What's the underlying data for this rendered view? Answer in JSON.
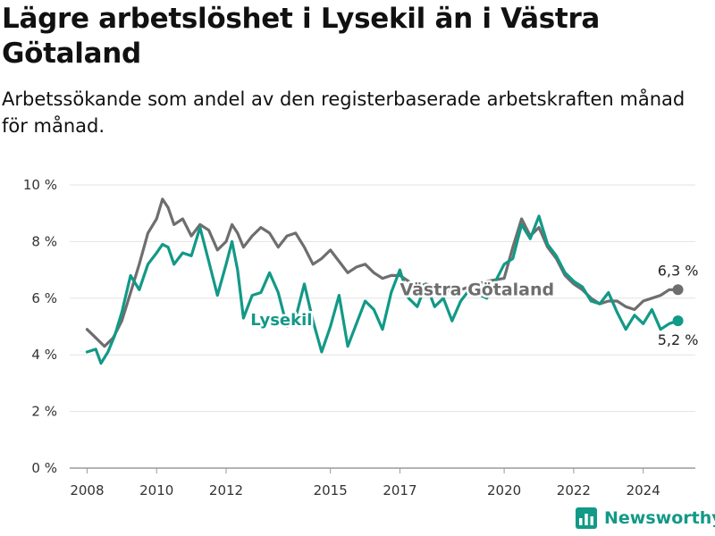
{
  "title": "Lägre arbetslöshet i Lysekil än i Västra Götaland",
  "subtitle": "Arbetssökande som andel av den registerbaserade arbetskraften månad för månad.",
  "brand": {
    "name": "Newsworthy",
    "icon": "bar-chart-icon",
    "color": "#129987"
  },
  "chart_data": {
    "type": "line",
    "title": "Lägre arbetslöshet i Lysekil än i Västra Götaland",
    "subtitle": "Arbetssökande som andel av den registerbaserade arbetskraften månad för månad.",
    "xlabel": "",
    "ylabel": "",
    "xlim": [
      2007.5,
      2025.5
    ],
    "ylim": [
      0,
      10
    ],
    "x_ticks": [
      2008,
      2010,
      2012,
      2015,
      2017,
      2020,
      2022,
      2024
    ],
    "y_ticks": [
      {
        "value": 0,
        "label": "0 %"
      },
      {
        "value": 2,
        "label": "2 %"
      },
      {
        "value": 4,
        "label": "4 %"
      },
      {
        "value": 6,
        "label": "6 %"
      },
      {
        "value": 8,
        "label": "8 %"
      },
      {
        "value": 10,
        "label": "10 %"
      }
    ],
    "grid": "horizontal",
    "series": [
      {
        "name": "Västra Götaland",
        "color": "#6e6e6e",
        "end_label": "6,3 %",
        "points": [
          [
            2008.0,
            4.9
          ],
          [
            2008.25,
            4.6
          ],
          [
            2008.5,
            4.3
          ],
          [
            2008.75,
            4.6
          ],
          [
            2009.0,
            5.2
          ],
          [
            2009.25,
            6.2
          ],
          [
            2009.5,
            7.2
          ],
          [
            2009.75,
            8.3
          ],
          [
            2010.0,
            8.8
          ],
          [
            2010.17,
            9.5
          ],
          [
            2010.33,
            9.2
          ],
          [
            2010.5,
            8.6
          ],
          [
            2010.75,
            8.8
          ],
          [
            2011.0,
            8.2
          ],
          [
            2011.25,
            8.6
          ],
          [
            2011.5,
            8.4
          ],
          [
            2011.75,
            7.7
          ],
          [
            2012.0,
            8.0
          ],
          [
            2012.17,
            8.6
          ],
          [
            2012.33,
            8.3
          ],
          [
            2012.5,
            7.8
          ],
          [
            2012.75,
            8.2
          ],
          [
            2013.0,
            8.5
          ],
          [
            2013.25,
            8.3
          ],
          [
            2013.5,
            7.8
          ],
          [
            2013.75,
            8.2
          ],
          [
            2014.0,
            8.3
          ],
          [
            2014.25,
            7.8
          ],
          [
            2014.5,
            7.2
          ],
          [
            2014.75,
            7.4
          ],
          [
            2015.0,
            7.7
          ],
          [
            2015.25,
            7.3
          ],
          [
            2015.5,
            6.9
          ],
          [
            2015.75,
            7.1
          ],
          [
            2016.0,
            7.2
          ],
          [
            2016.25,
            6.9
          ],
          [
            2016.5,
            6.7
          ],
          [
            2016.75,
            6.8
          ],
          [
            2017.0,
            6.8
          ],
          [
            2017.25,
            6.6
          ],
          [
            2017.5,
            6.4
          ],
          [
            2017.75,
            6.5
          ],
          [
            2018.0,
            6.4
          ],
          [
            2018.25,
            6.3
          ],
          [
            2018.5,
            6.2
          ],
          [
            2018.75,
            6.3
          ],
          [
            2019.0,
            6.4
          ],
          [
            2019.5,
            6.6
          ],
          [
            2020.0,
            6.7
          ],
          [
            2020.25,
            7.8
          ],
          [
            2020.5,
            8.8
          ],
          [
            2020.75,
            8.2
          ],
          [
            2021.0,
            8.5
          ],
          [
            2021.25,
            7.8
          ],
          [
            2021.5,
            7.4
          ],
          [
            2021.75,
            6.8
          ],
          [
            2022.0,
            6.5
          ],
          [
            2022.25,
            6.3
          ],
          [
            2022.5,
            6.0
          ],
          [
            2022.75,
            5.8
          ],
          [
            2023.0,
            5.9
          ],
          [
            2023.25,
            5.9
          ],
          [
            2023.5,
            5.7
          ],
          [
            2023.75,
            5.6
          ],
          [
            2024.0,
            5.9
          ],
          [
            2024.25,
            6.0
          ],
          [
            2024.5,
            6.1
          ],
          [
            2024.75,
            6.3
          ],
          [
            2025.0,
            6.3
          ]
        ]
      },
      {
        "name": "Lysekil",
        "color": "#129987",
        "end_label": "5,2 %",
        "points": [
          [
            2008.0,
            4.1
          ],
          [
            2008.25,
            4.2
          ],
          [
            2008.4,
            3.7
          ],
          [
            2008.6,
            4.1
          ],
          [
            2008.8,
            4.7
          ],
          [
            2009.0,
            5.5
          ],
          [
            2009.25,
            6.8
          ],
          [
            2009.5,
            6.3
          ],
          [
            2009.75,
            7.2
          ],
          [
            2010.0,
            7.6
          ],
          [
            2010.17,
            7.9
          ],
          [
            2010.33,
            7.8
          ],
          [
            2010.5,
            7.2
          ],
          [
            2010.75,
            7.6
          ],
          [
            2011.0,
            7.5
          ],
          [
            2011.25,
            8.5
          ],
          [
            2011.5,
            7.3
          ],
          [
            2011.75,
            6.1
          ],
          [
            2012.0,
            7.2
          ],
          [
            2012.17,
            8.0
          ],
          [
            2012.33,
            7.0
          ],
          [
            2012.5,
            5.3
          ],
          [
            2012.75,
            6.1
          ],
          [
            2013.0,
            6.2
          ],
          [
            2013.25,
            6.9
          ],
          [
            2013.5,
            6.2
          ],
          [
            2013.75,
            5.0
          ],
          [
            2014.0,
            5.3
          ],
          [
            2014.25,
            6.5
          ],
          [
            2014.5,
            5.2
          ],
          [
            2014.75,
            4.1
          ],
          [
            2015.0,
            5.0
          ],
          [
            2015.25,
            6.1
          ],
          [
            2015.5,
            4.3
          ],
          [
            2015.75,
            5.1
          ],
          [
            2016.0,
            5.9
          ],
          [
            2016.25,
            5.6
          ],
          [
            2016.5,
            4.9
          ],
          [
            2016.75,
            6.2
          ],
          [
            2017.0,
            7.0
          ],
          [
            2017.25,
            6.0
          ],
          [
            2017.5,
            5.7
          ],
          [
            2017.75,
            6.5
          ],
          [
            2018.0,
            5.7
          ],
          [
            2018.25,
            6.0
          ],
          [
            2018.5,
            5.2
          ],
          [
            2018.75,
            5.9
          ],
          [
            2019.0,
            6.3
          ],
          [
            2019.5,
            6.0
          ],
          [
            2020.0,
            7.2
          ],
          [
            2020.25,
            7.4
          ],
          [
            2020.5,
            8.6
          ],
          [
            2020.75,
            8.1
          ],
          [
            2021.0,
            8.9
          ],
          [
            2021.25,
            7.9
          ],
          [
            2021.5,
            7.5
          ],
          [
            2021.75,
            6.9
          ],
          [
            2022.0,
            6.6
          ],
          [
            2022.25,
            6.4
          ],
          [
            2022.5,
            5.9
          ],
          [
            2022.75,
            5.8
          ],
          [
            2023.0,
            6.2
          ],
          [
            2023.25,
            5.5
          ],
          [
            2023.5,
            4.9
          ],
          [
            2023.75,
            5.4
          ],
          [
            2024.0,
            5.1
          ],
          [
            2024.25,
            5.6
          ],
          [
            2024.5,
            4.9
          ],
          [
            2024.75,
            5.1
          ],
          [
            2025.0,
            5.2
          ]
        ]
      }
    ]
  }
}
